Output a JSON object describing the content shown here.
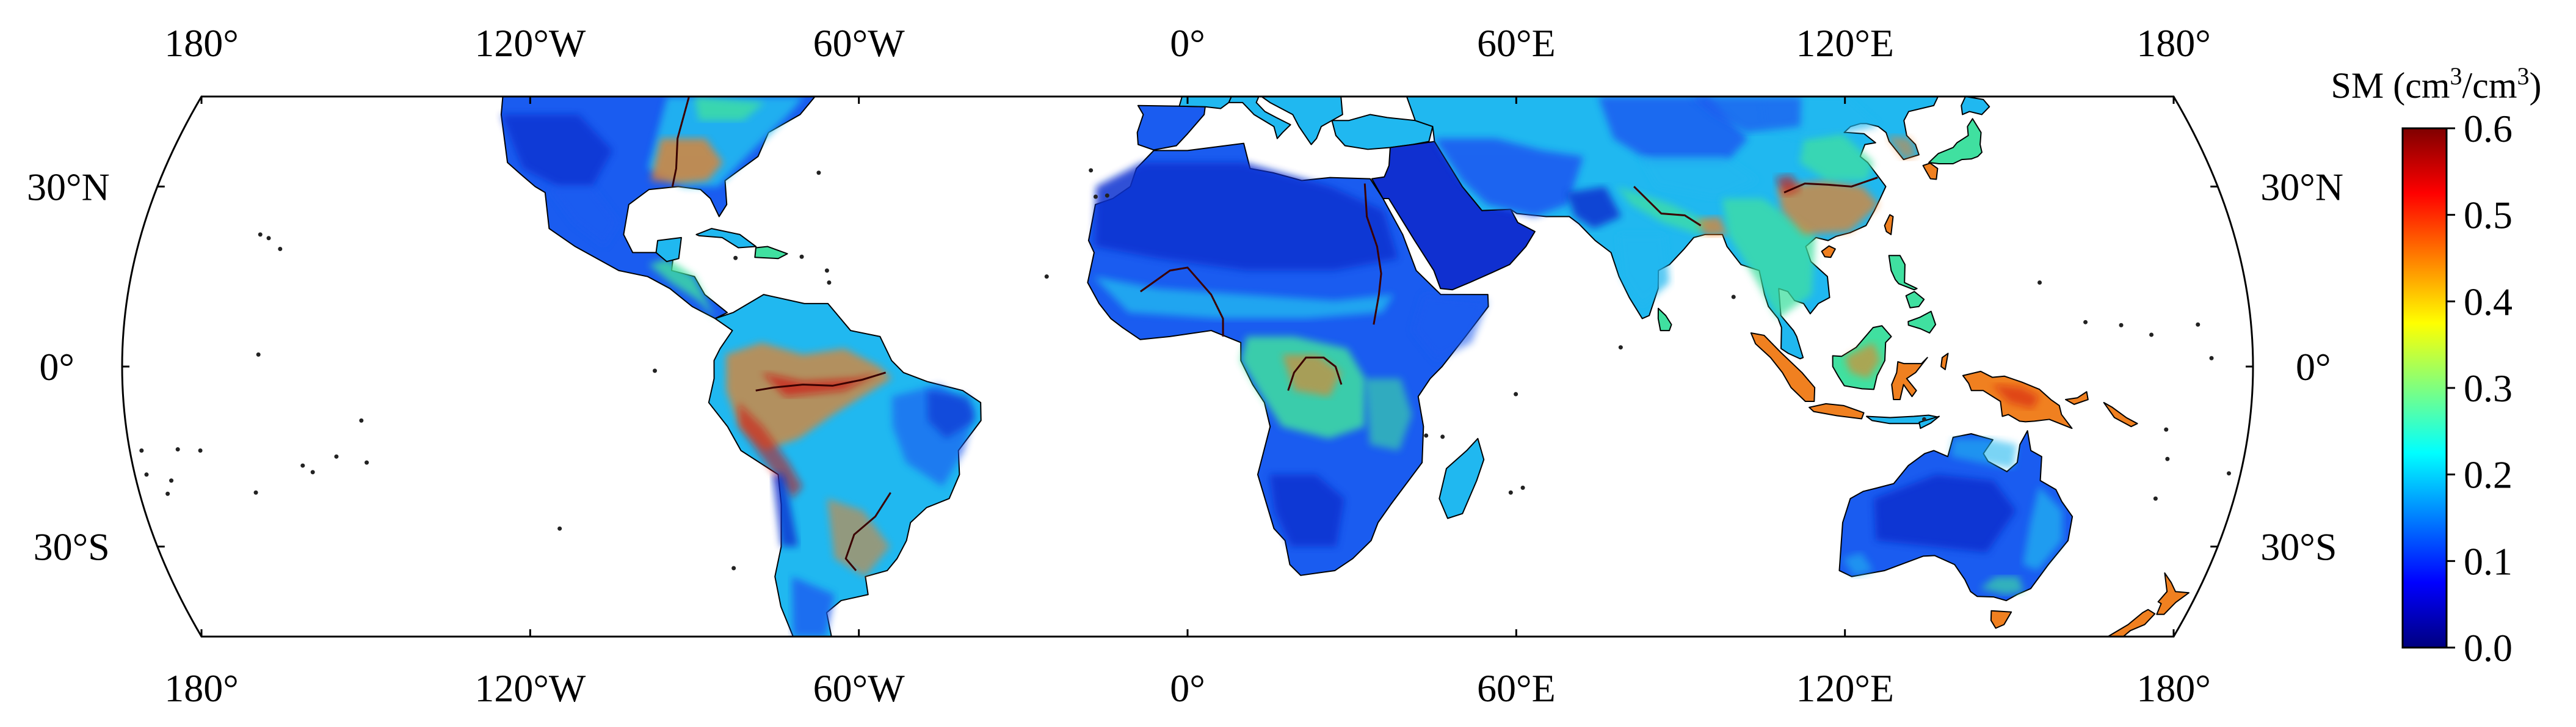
{
  "map": {
    "projection": "Robinson-like (truncated 45°S–45°N)",
    "lon_range": [
      -180,
      180
    ],
    "lat_range": [
      -45,
      45
    ],
    "top_lon_labels": [
      "180°",
      "120°W",
      "60°W",
      "0°",
      "60°E",
      "120°E",
      "180°"
    ],
    "bottom_lon_labels": [
      "180°",
      "120°W",
      "60°W",
      "0°",
      "60°E",
      "120°E",
      "180°"
    ],
    "left_lat_labels": [
      "30°N",
      "0°",
      "30°S"
    ],
    "right_lat_labels": [
      "30°N",
      "0°",
      "30°S"
    ],
    "background_color": "#ffffff",
    "ocean_color": "#ffffff",
    "coastline_color": "#000000"
  },
  "colorbar": {
    "title_prefix": "SM (cm",
    "title_sup1": "3",
    "title_mid": "/cm",
    "title_sup2": "3",
    "title_suffix": ")",
    "tick_labels": [
      "0.6",
      "0.5",
      "0.4",
      "0.3",
      "0.2",
      "0.1",
      "0.0"
    ],
    "min": 0.0,
    "max": 0.6,
    "colormap": "jet",
    "colors": [
      "#00007f",
      "#0000ff",
      "#007fff",
      "#00ffff",
      "#7fff7f",
      "#ffff00",
      "#ff7f00",
      "#ff0000",
      "#7f0000"
    ]
  },
  "regions": {
    "desert_color": "#1030d0",
    "low_sm_color": "#1a5cf0",
    "mid_sm_color": "#20b8f0",
    "wet_color": "#40e0a0",
    "very_wet_color": "#f08020",
    "saturated_color": "#d01010"
  }
}
